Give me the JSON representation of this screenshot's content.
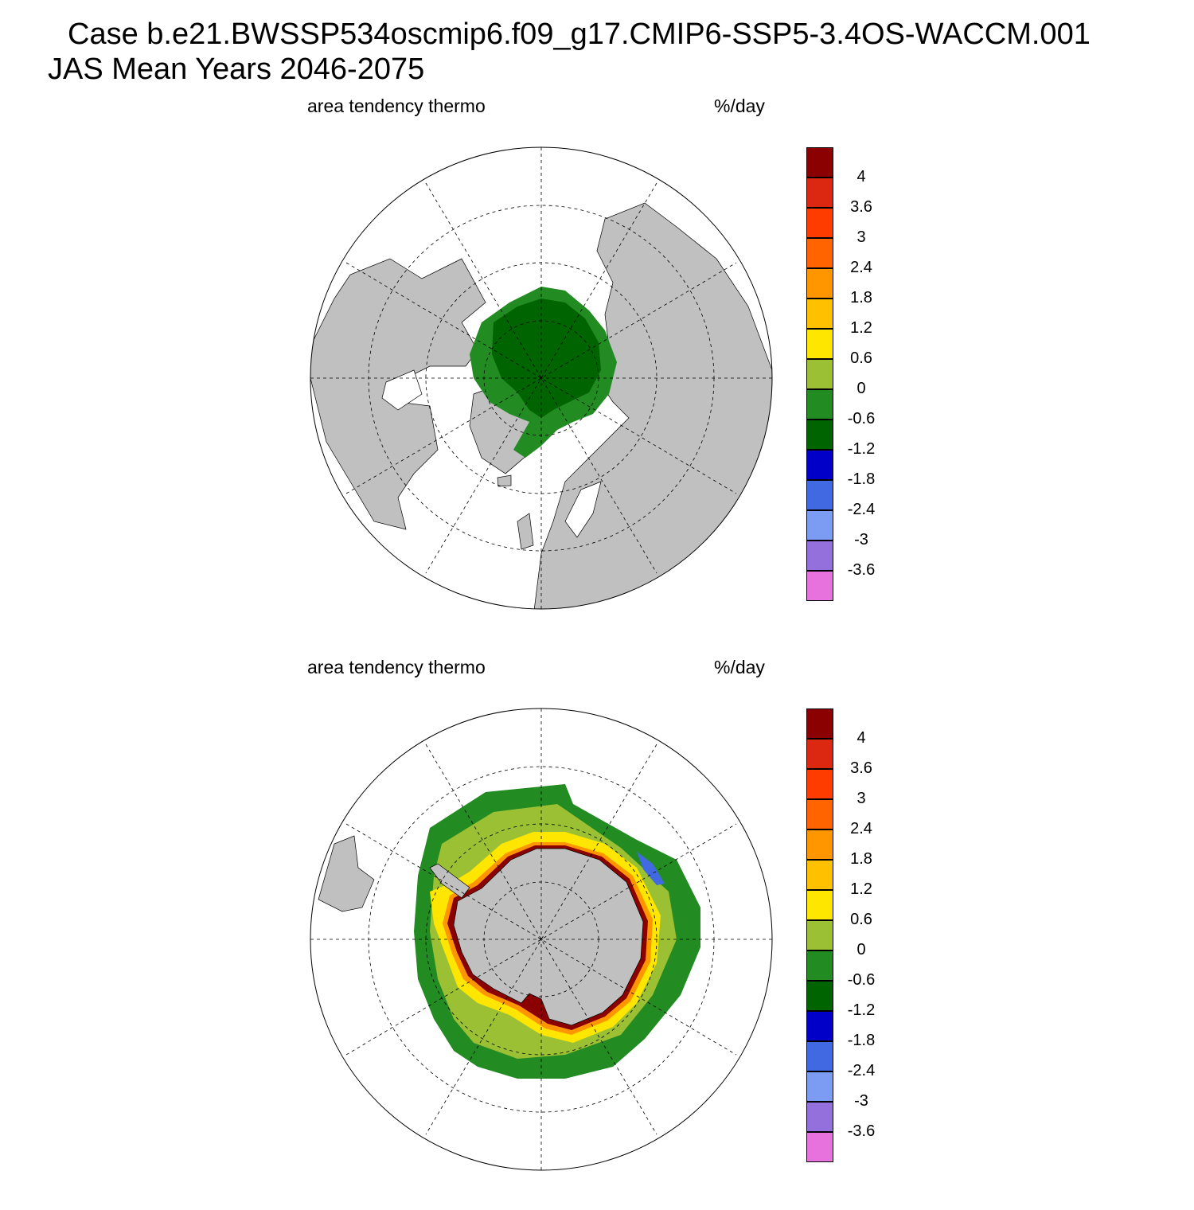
{
  "title": {
    "line1": "Case b.e21.BWSSP534oscmip6.f09_g17.CMIP6-SSP5-3.4OS-WACCM.001",
    "line2": "JAS Mean   Years 2046-2075"
  },
  "panels": [
    {
      "id": "north",
      "hemisphere": "Northern Hemisphere",
      "left_label": "area tendency thermo",
      "right_label": "%/day"
    },
    {
      "id": "south",
      "hemisphere": "Southern Hemisphere",
      "left_label": "area tendency thermo",
      "right_label": "%/day"
    }
  ],
  "colorbar": {
    "levels": [
      "4",
      "3.6",
      "3",
      "2.4",
      "1.8",
      "1.2",
      "0.6",
      "0",
      "-0.6",
      "-1.2",
      "-1.8",
      "-2.4",
      "-3",
      "-3.6"
    ],
    "colors": [
      "#8b0000",
      "#dc2810",
      "#ff3c00",
      "#ff6400",
      "#ff9600",
      "#ffc000",
      "#ffe600",
      "#9bc034",
      "#228b22",
      "#006400",
      "#0000c8",
      "#4169e1",
      "#7b9cf2",
      "#9370db",
      "#e872dd"
    ]
  },
  "map_colors": {
    "land": "#c0c0c0",
    "ocean": "#ffffff"
  }
}
